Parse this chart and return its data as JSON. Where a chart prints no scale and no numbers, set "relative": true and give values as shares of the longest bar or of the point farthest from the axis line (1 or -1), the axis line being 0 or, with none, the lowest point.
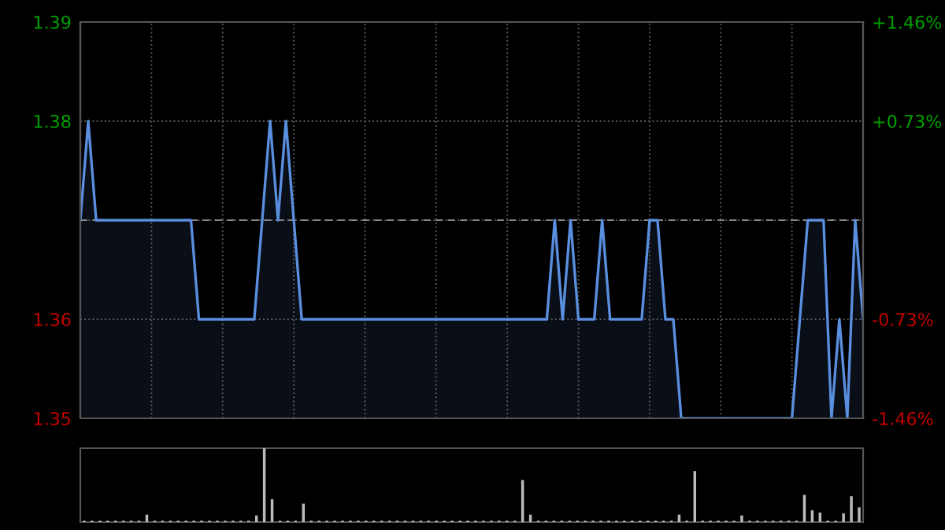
{
  "chart_data": [
    {
      "type": "area",
      "color": "#5a8ede",
      "categories": [
        null,
        null,
        null,
        null,
        null,
        null,
        null,
        null,
        null,
        null,
        null,
        null,
        null,
        null,
        null,
        null,
        null,
        null,
        null,
        null,
        null,
        null,
        null,
        null,
        null,
        null,
        null,
        null,
        null,
        null,
        null,
        null,
        null,
        null,
        null,
        null,
        null,
        null,
        null,
        null,
        null,
        null,
        null,
        null,
        null,
        null,
        null,
        null,
        null,
        null,
        null,
        null,
        null,
        null,
        null,
        null,
        null,
        null,
        null,
        null,
        null,
        null,
        null,
        null,
        null,
        null,
        null,
        null,
        null,
        null,
        null,
        null,
        null,
        null,
        null,
        null,
        null,
        null,
        null,
        null,
        null,
        null,
        null,
        null,
        null,
        null,
        null,
        null,
        null,
        null,
        null,
        null,
        null,
        null,
        null,
        null,
        null,
        null,
        null,
        null
      ],
      "values": [
        1.37,
        1.38,
        1.37,
        1.37,
        1.37,
        1.37,
        1.37,
        1.37,
        1.37,
        1.37,
        1.37,
        1.37,
        1.37,
        1.37,
        1.37,
        1.36,
        1.36,
        1.36,
        1.36,
        1.36,
        1.36,
        1.36,
        1.36,
        1.37,
        1.38,
        1.37,
        1.38,
        1.37,
        1.36,
        1.36,
        1.36,
        1.36,
        1.36,
        1.36,
        1.36,
        1.36,
        1.36,
        1.36,
        1.36,
        1.36,
        1.36,
        1.36,
        1.36,
        1.36,
        1.36,
        1.36,
        1.36,
        1.36,
        1.36,
        1.36,
        1.36,
        1.36,
        1.36,
        1.36,
        1.36,
        1.36,
        1.36,
        1.36,
        1.36,
        1.36,
        1.37,
        1.36,
        1.37,
        1.36,
        1.36,
        1.36,
        1.37,
        1.36,
        1.36,
        1.36,
        1.36,
        1.36,
        1.37,
        1.37,
        1.36,
        1.36,
        1.35,
        1.35,
        1.35,
        1.35,
        1.35,
        1.35,
        1.35,
        1.35,
        1.35,
        1.35,
        1.35,
        1.35,
        1.35,
        1.35,
        1.35,
        1.36,
        1.37,
        1.37,
        1.37,
        1.35,
        1.36,
        1.35,
        1.37,
        1.36
      ],
      "ylim": [
        1.35,
        1.39
      ],
      "yticks": [
        1.35,
        1.36,
        {
          "value": 1.37,
          "label": null
        },
        1.38,
        1.39
      ],
      "y2lim": [
        -1.46,
        1.46
      ],
      "y2ticks": [
        {
          "value": -1.46,
          "label": "-1.46%"
        },
        {
          "value": -0.73,
          "label": "-0.73%"
        },
        {
          "value": 0.73,
          "label": "+0.73%"
        },
        {
          "value": 1.46,
          "label": "+1.46%"
        }
      ],
      "ref_lines": [
        {
          "axis": "y",
          "value": 1.37,
          "color": "#888888",
          "line_style": "dashed"
        }
      ],
      "grid": true
    },
    {
      "type": "bar",
      "relative": true,
      "color": "#bbbbbb",
      "categories": [
        null,
        null,
        null,
        null,
        null,
        null,
        null,
        null,
        null,
        null,
        null,
        null,
        null,
        null,
        null,
        null,
        null,
        null,
        null,
        null,
        null,
        null,
        null,
        null,
        null,
        null,
        null,
        null,
        null,
        null,
        null,
        null,
        null,
        null,
        null,
        null,
        null,
        null,
        null,
        null,
        null,
        null,
        null,
        null,
        null,
        null,
        null,
        null,
        null,
        null,
        null,
        null,
        null,
        null,
        null,
        null,
        null,
        null,
        null,
        null,
        null,
        null,
        null,
        null,
        null,
        null,
        null,
        null,
        null,
        null,
        null,
        null,
        null,
        null,
        null,
        null,
        null,
        null,
        null,
        null,
        null,
        null,
        null,
        null,
        null,
        null,
        null,
        null,
        null,
        null,
        null,
        null,
        null,
        null,
        null,
        null,
        null,
        null,
        null,
        null
      ],
      "values": [
        0.02,
        0.02,
        0.02,
        0.02,
        0.02,
        0.02,
        0.02,
        0.02,
        0.1,
        0.02,
        0.02,
        0.02,
        0.02,
        0.02,
        0.02,
        0.02,
        0.02,
        0.02,
        0.02,
        0.02,
        0.02,
        0.02,
        0.09,
        1,
        0.31,
        0.02,
        0.02,
        0.02,
        0.25,
        0.02,
        0.02,
        0.02,
        0.02,
        0.02,
        0.02,
        0.02,
        0.02,
        0.02,
        0.02,
        0.02,
        0.02,
        0.02,
        0.02,
        0.02,
        0.02,
        0.02,
        0.02,
        0.02,
        0.02,
        0.02,
        0.02,
        0.02,
        0.02,
        0.02,
        0.02,
        0.02,
        0.57,
        0.1,
        0.02,
        0.02,
        0.02,
        0.02,
        0.02,
        0.02,
        0.02,
        0.02,
        0.02,
        0.02,
        0.02,
        0.02,
        0.02,
        0.02,
        0.02,
        0.02,
        0.02,
        0.02,
        0.1,
        0.02,
        0.69,
        0.02,
        0.02,
        0.02,
        0.02,
        0.02,
        0.09,
        0.02,
        0.02,
        0.02,
        0.02,
        0.02,
        0.02,
        0.02,
        0.37,
        0.16,
        0.13,
        0.02,
        0.02,
        0.12,
        0.35,
        0.2
      ]
    }
  ]
}
